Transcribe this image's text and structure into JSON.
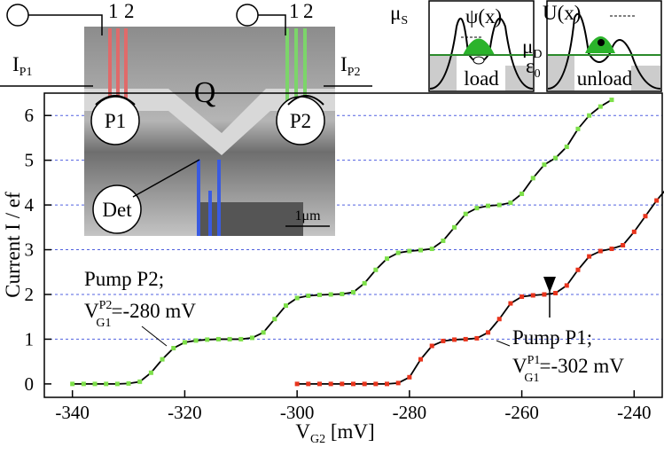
{
  "chart_data": {
    "type": "scatter",
    "x_label": {
      "text": "V",
      "sub": "G2",
      "rest": " [mV]"
    },
    "y_label": "Current I / ef",
    "xlim": [
      -345,
      -235
    ],
    "ylim": [
      -0.3,
      6.5
    ],
    "xticks": [
      -340,
      -320,
      -300,
      -280,
      -260,
      -240
    ],
    "yticks": [
      0,
      1,
      2,
      3,
      4,
      5,
      6
    ],
    "grid": true,
    "fit_color": "#000000",
    "series": [
      {
        "name": "Pump P2",
        "color": "#7ee04a",
        "x": [
          -340,
          -338,
          -336,
          -334,
          -332,
          -330,
          -328,
          -326,
          -324,
          -322,
          -320,
          -318,
          -316,
          -314,
          -312,
          -310,
          -308,
          -306,
          -304,
          -302,
          -300,
          -298,
          -296,
          -294,
          -292,
          -290,
          -288,
          -286,
          -284,
          -282,
          -280,
          -278,
          -276,
          -274,
          -272,
          -270,
          -268,
          -266,
          -264,
          -262,
          -260,
          -258,
          -256,
          -254,
          -252,
          -250,
          -248,
          -246,
          -244
        ],
        "values": [
          0,
          0,
          0,
          0,
          0,
          0.01,
          0.05,
          0.25,
          0.55,
          0.8,
          0.93,
          0.97,
          0.99,
          1,
          1,
          1,
          1.03,
          1.15,
          1.45,
          1.75,
          1.92,
          1.97,
          1.99,
          2,
          2.01,
          2.05,
          2.25,
          2.55,
          2.8,
          2.93,
          2.97,
          2.99,
          3.02,
          3.2,
          3.5,
          3.8,
          3.93,
          3.98,
          4,
          4.05,
          4.25,
          4.6,
          4.9,
          5.05,
          5.3,
          5.7,
          6.0,
          6.2,
          6.35
        ]
      },
      {
        "name": "Pump P1",
        "color": "#e8341c",
        "x": [
          -300,
          -298,
          -296,
          -294,
          -292,
          -290,
          -288,
          -286,
          -284,
          -282,
          -280,
          -278,
          -276,
          -274,
          -272,
          -270,
          -268,
          -266,
          -264,
          -262,
          -260,
          -258,
          -256,
          -254,
          -252,
          -250,
          -248,
          -246,
          -244,
          -242,
          -240,
          -238,
          -236,
          -234
        ],
        "values": [
          0,
          0,
          0,
          0,
          0,
          0,
          0,
          0,
          0,
          0.02,
          0.15,
          0.55,
          0.85,
          0.96,
          0.99,
          1,
          1.02,
          1.15,
          1.45,
          1.8,
          1.95,
          1.98,
          2,
          2.03,
          2.2,
          2.55,
          2.85,
          2.97,
          3.02,
          3.1,
          3.4,
          3.75,
          4.1,
          4.4
        ]
      }
    ],
    "annotations": {
      "p2_title": "Pump P2;",
      "p2_v": {
        "text": "V",
        "sup": "P2",
        "sub": "G1",
        "rest": "=-280 mV"
      },
      "p1_title": "Pump P1;",
      "p1_v": {
        "text": "V",
        "sup": "P1",
        "sub": "G1",
        "rest": "=-302 mV"
      },
      "ip1": {
        "text": "I",
        "sub": "P1"
      },
      "ip2": {
        "text": "I",
        "sub": "P2"
      },
      "q": "Q",
      "pump1": "P1",
      "pump2": "P2",
      "det": "Det",
      "scale": "1μm",
      "gate_1a": "1",
      "gate_2a": "2",
      "gate_1b": "1",
      "gate_2b": "2",
      "mu_s": {
        "text": "μ",
        "sub": "S"
      },
      "mu_d": {
        "text": "μ",
        "sub": "D"
      },
      "eps": {
        "text": "ε",
        "sub": "0"
      },
      "psi": "ψ(x)",
      "u": "U(x)",
      "load": "load",
      "unload": "unload"
    }
  }
}
